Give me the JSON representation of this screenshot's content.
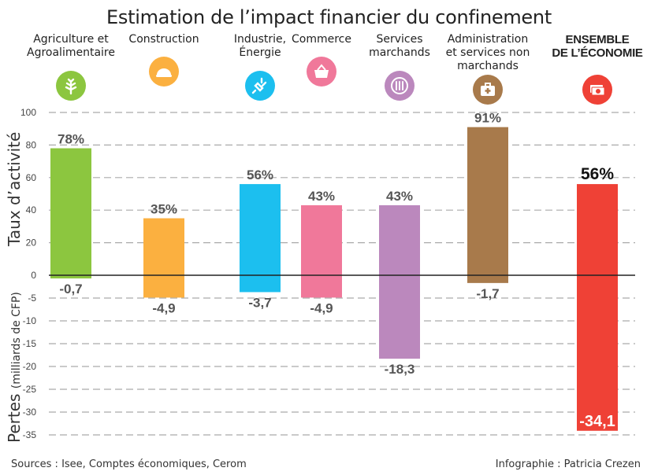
{
  "chart_data": {
    "type": "bar",
    "title": "Estimation de l’impact financier du confinement",
    "categories": [
      "Agriculture et Agroalimentaire",
      "Construction",
      "Industrie, Énergie",
      "Commerce",
      "Services marchands",
      "Administration et services non marchands",
      "ENSEMBLE DE L’ÉCONOMIE"
    ],
    "category_lines": [
      [
        "Agriculture et",
        "Agroalimentaire"
      ],
      [
        "Construction"
      ],
      [
        "Industrie,",
        "Énergie"
      ],
      [
        "Commerce"
      ],
      [
        "Services",
        "marchands"
      ],
      [
        "Administration",
        "et services non",
        "marchands"
      ],
      [
        "ENSEMBLE",
        "DE L’ÉCONOMIE"
      ]
    ],
    "icons": [
      "plant-icon",
      "hard-hat-icon",
      "plug-icon",
      "basket-icon",
      "cutlery-icon",
      "first-aid-kit-icon",
      "money-icon"
    ],
    "colors": [
      "#8cc63f",
      "#fbb040",
      "#1cbfef",
      "#f0789a",
      "#bb88bd",
      "#a87a4b",
      "#ef4136"
    ],
    "series": [
      {
        "name": "Taux d’activité",
        "unit": "%",
        "values": [
          78,
          35,
          56,
          43,
          43,
          91,
          56
        ],
        "labels": [
          "78%",
          "35%",
          "56%",
          "43%",
          "43%",
          "91%",
          "56%"
        ]
      },
      {
        "name": "Pertes (milliards de CFP)",
        "unit": "milliards de CFP",
        "values": [
          -0.7,
          -4.9,
          -3.7,
          -4.9,
          -18.3,
          -1.7,
          -34.1
        ],
        "labels": [
          "-0,7",
          "-4,9",
          "-3,7",
          "-4,9",
          "-18,3",
          "-1,7",
          "-34,1"
        ]
      }
    ],
    "ylabel_top": "Taux d’activité",
    "ylabel_bottom_main": "Pertes",
    "ylabel_bottom_unit": "(milliards de CFP)",
    "ylim_top": [
      0,
      100
    ],
    "yticks_top": [
      0,
      20,
      40,
      60,
      80,
      100
    ],
    "ylim_bottom": [
      -35,
      0
    ],
    "yticks_bottom": [
      -5,
      -10,
      -15,
      -20,
      -25,
      -30,
      -35
    ],
    "grid": true,
    "grid_style": "dashed"
  },
  "footer": {
    "sources": "Sources : Isee, Comptes économiques, Cerom",
    "credit": "Infographie : Patricia Crezen"
  }
}
